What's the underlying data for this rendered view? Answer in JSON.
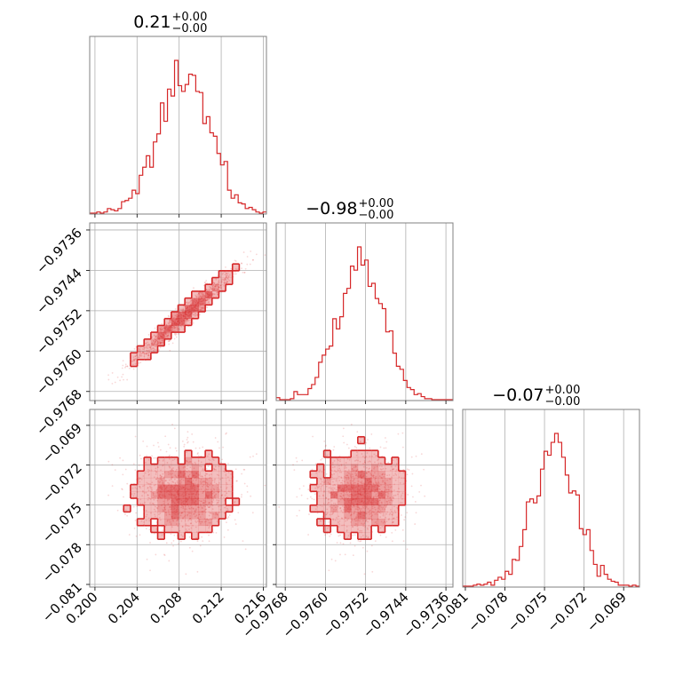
{
  "chart_data": {
    "type": "corner",
    "color": "#d62728",
    "grid": true,
    "parameters": [
      {
        "title_value": "0.21",
        "title_plus": "+0.00",
        "title_minus": "−0.00",
        "range": [
          0.1995,
          0.2163
        ],
        "ticks": [
          0.2,
          0.204,
          0.208,
          0.212,
          0.216
        ],
        "tick_labels": [
          "0.200",
          "0.204",
          "0.208",
          "0.212",
          "0.216"
        ],
        "center": 0.2085,
        "sigma": 0.0024
      },
      {
        "title_value": "−0.98",
        "title_plus": "+0.00",
        "title_minus": "−0.00",
        "range": [
          -0.97698,
          -0.97346
        ],
        "ticks": [
          -0.9768,
          -0.976,
          -0.9752,
          -0.9744,
          -0.9736
        ],
        "tick_labels": [
          "−0.9768",
          "−0.9760",
          "−0.9752",
          "−0.9744",
          "−0.9736"
        ],
        "center": -0.9753,
        "sigma": 0.00045
      },
      {
        "title_value": "−0.07",
        "title_plus": "+0.00",
        "title_minus": "−0.00",
        "range": [
          -0.0812,
          -0.0678
        ],
        "ticks": [
          -0.081,
          -0.078,
          -0.075,
          -0.072,
          -0.069
        ],
        "tick_labels": [
          "−0.081",
          "−0.078",
          "−0.075",
          "−0.072",
          "−0.069"
        ],
        "center": -0.0743,
        "sigma": 0.0017
      }
    ],
    "correlations": {
      "1-0": 0.97,
      "2-0": 0.0,
      "2-1": 0.0
    }
  }
}
